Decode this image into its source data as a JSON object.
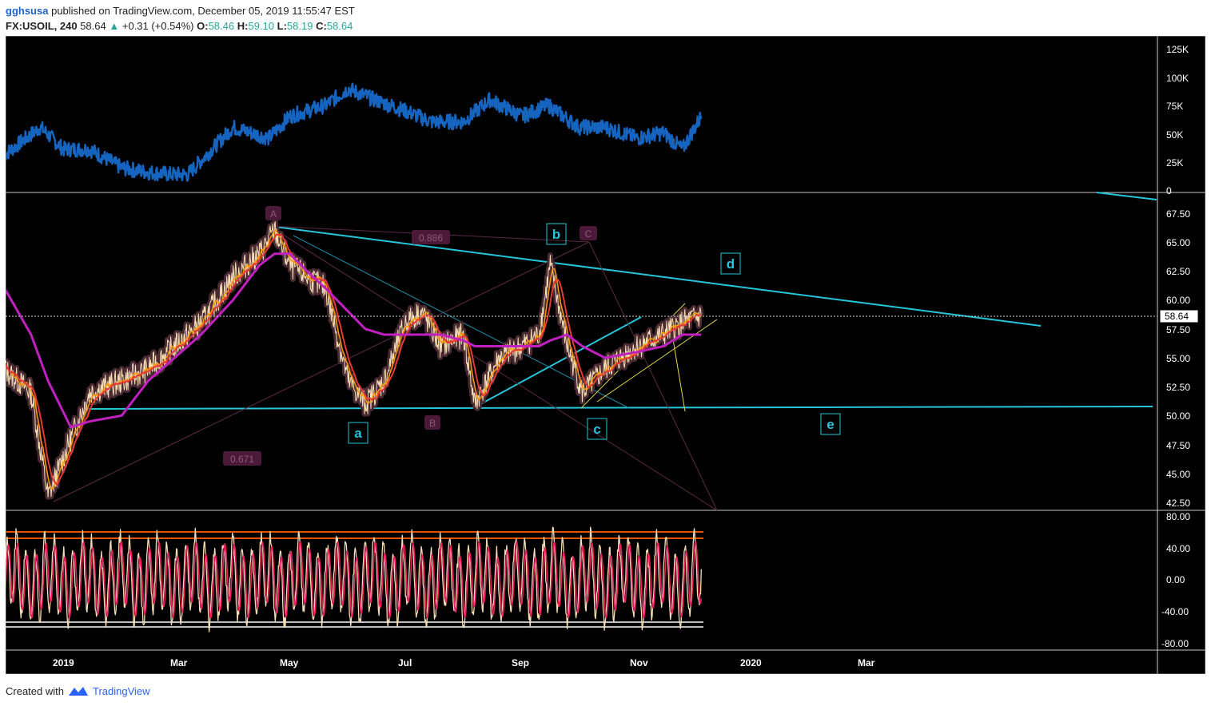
{
  "header": {
    "author": "gghsusa",
    "published_text": "published on TradingView.com, December 05, 2019 11:55:47 EST",
    "symbol": "FX:USOIL, 240",
    "price": "58.64",
    "change": "+0.31 (+0.54%)",
    "ohlc": [
      {
        "label": "O:",
        "value": "58.46"
      },
      {
        "label": "H:",
        "value": "59.10"
      },
      {
        "label": "L:",
        "value": "58.19"
      },
      {
        "label": "C:",
        "value": "58.64"
      }
    ]
  },
  "footer": {
    "created_with": "Created with",
    "brand": "TradingView"
  },
  "colors": {
    "background": "#000000",
    "volume_line": "#1565c0",
    "trendline": "#26c6da",
    "magenta_ma": "#c020c0",
    "red_ma": "#e53935",
    "orange_ma": "#ff9800",
    "yellow_line": "#e6d84a",
    "stoch_k": "#f5deb3",
    "stoch_d": "#e91e63",
    "level_band": "#e65100"
  },
  "chart_data": [
    {
      "type": "line",
      "name": "volume",
      "y_ticks": [
        "125K",
        "100K",
        "75K",
        "50K",
        "25K",
        "0"
      ],
      "ylim": [
        0,
        125000
      ],
      "x": [
        "2018-12-01",
        "2018-12-20",
        "2019-01-01",
        "2019-01-15",
        "2019-02-01",
        "2019-02-15",
        "2019-03-01",
        "2019-03-08",
        "2019-04-01",
        "2019-04-20",
        "2019-05-01",
        "2019-05-20",
        "2019-06-01",
        "2019-06-15",
        "2019-07-01",
        "2019-07-15",
        "2019-08-01",
        "2019-08-15",
        "2019-09-01",
        "2019-09-15",
        "2019-10-01",
        "2019-10-15",
        "2019-11-01",
        "2019-11-15",
        "2019-11-25",
        "2019-12-05"
      ],
      "values": [
        30000,
        55000,
        35000,
        35000,
        18000,
        14000,
        12000,
        12000,
        55000,
        45000,
        65000,
        75000,
        90000,
        80000,
        70000,
        60000,
        60000,
        80000,
        65000,
        75000,
        55000,
        55000,
        45000,
        50000,
        35000,
        65000
      ]
    },
    {
      "type": "line",
      "name": "price",
      "y_ticks": [
        "67.50",
        "65.00",
        "62.50",
        "60.00",
        "57.50",
        "55.00",
        "52.50",
        "50.00",
        "47.50",
        "45.00",
        "42.50"
      ],
      "ylim": [
        42,
        69
      ],
      "last_price_label": "58.64",
      "x": [
        "2018-12-01",
        "2018-12-15",
        "2018-12-24",
        "2019-01-05",
        "2019-01-15",
        "2019-02-01",
        "2019-02-15",
        "2019-03-01",
        "2019-03-15",
        "2019-04-01",
        "2019-04-15",
        "2019-04-23",
        "2019-05-01",
        "2019-05-10",
        "2019-05-20",
        "2019-06-01",
        "2019-06-10",
        "2019-06-20",
        "2019-07-01",
        "2019-07-10",
        "2019-07-20",
        "2019-08-01",
        "2019-08-07",
        "2019-08-20",
        "2019-09-01",
        "2019-09-10",
        "2019-09-16",
        "2019-09-25",
        "2019-10-03",
        "2019-10-15",
        "2019-11-01",
        "2019-11-15",
        "2019-11-25",
        "2019-12-05"
      ],
      "values": [
        54,
        52,
        43,
        48,
        52,
        53,
        54,
        56,
        58,
        62,
        64,
        66,
        63,
        62,
        61,
        53,
        51,
        53,
        58,
        59,
        56,
        57,
        51,
        55,
        56,
        57,
        63,
        56,
        52,
        54,
        56,
        57,
        58,
        58.64
      ],
      "annotations": [
        "a",
        "b",
        "c",
        "d",
        "e",
        "A",
        "B",
        "C",
        "0.886",
        "0.671"
      ],
      "ma_magenta": [
        61,
        57,
        53,
        49,
        49.5,
        50,
        53,
        55,
        57,
        60,
        63,
        64,
        64,
        62.5,
        61,
        59,
        57.5,
        57,
        57,
        57,
        57,
        56.5,
        56,
        56,
        56,
        56,
        56.5,
        57,
        56,
        55,
        55.5,
        56,
        57,
        57
      ]
    },
    {
      "type": "line",
      "name": "stochastic",
      "y_ticks": [
        "80.00",
        "40.00",
        "0.00",
        "-40.00",
        "-80.00"
      ],
      "ylim": [
        -80,
        80
      ],
      "levels": [
        60,
        52,
        -52,
        -58
      ]
    }
  ],
  "x_axis_ticks": [
    "2019",
    "Mar",
    "May",
    "Jul",
    "Sep",
    "Nov",
    "2020",
    "Mar"
  ]
}
